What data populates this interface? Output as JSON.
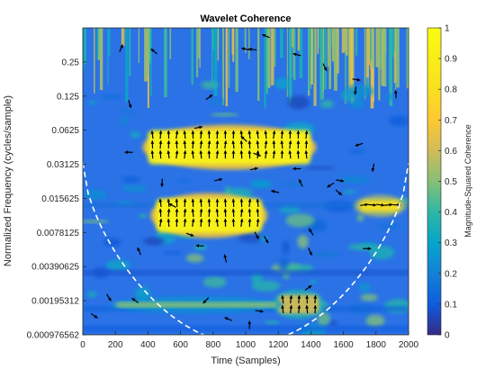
{
  "chart_data": {
    "type": "heatmap",
    "title": "Wavelet Coherence",
    "xlabel": "Time (Samples)",
    "ylabel": "Normalized Frequency  (cycles/sample)",
    "xlim": [
      0,
      2000
    ],
    "x_ticks": [
      0,
      200,
      400,
      600,
      800,
      1000,
      1200,
      1400,
      1600,
      1800,
      2000
    ],
    "y_scale": "log2",
    "ylim": [
      0.000976562,
      0.5
    ],
    "y_ticks": [
      0.25,
      0.125,
      0.0625,
      0.03125,
      0.015625,
      0.0078125,
      0.00390625,
      0.00195312,
      0.000976562
    ],
    "y_tick_labels": [
      "0.25",
      "0.125",
      "0.0625",
      "0.03125",
      "0.015625",
      "0.0078125",
      "0.00390625",
      "0.00195312",
      "0.000976562"
    ],
    "colorbar": {
      "label": "Magnitude-Squared Coherence",
      "range": [
        0,
        1
      ],
      "ticks": [
        0,
        0.1,
        0.2,
        0.3,
        0.4,
        0.5,
        0.6,
        0.7,
        0.8,
        0.9,
        1
      ],
      "tick_labels": [
        "0",
        "0.1",
        "0.2",
        "0.3",
        "0.4",
        "0.5",
        "0.6",
        "0.7",
        "0.8",
        "0.9",
        "1"
      ],
      "colormap": "parula"
    },
    "high_coherence_regions": [
      {
        "x_range": [
          400,
          1400
        ],
        "freq_range": [
          0.03125,
          0.0625
        ],
        "coherence": 0.95,
        "phase_arrows": "up"
      },
      {
        "x_range": [
          450,
          1100
        ],
        "freq_range": [
          0.0078125,
          0.015625
        ],
        "coherence": 0.95,
        "phase_arrows": "up"
      },
      {
        "x_range": [
          1200,
          1450
        ],
        "freq_range": [
          0.0015,
          0.0022
        ],
        "coherence": 0.6,
        "phase_arrows": "up"
      },
      {
        "x_range": [
          200,
          1200
        ],
        "freq_range": [
          0.0017,
          0.0019
        ],
        "coherence": 0.5,
        "phase_arrows": "right"
      },
      {
        "x_range": [
          1700,
          1950
        ],
        "freq_range": [
          0.012,
          0.015
        ],
        "coherence": 0.8,
        "phase_arrows": "right"
      }
    ],
    "cone_of_influence": {
      "style": "dashed",
      "color": "#ffffff"
    }
  }
}
